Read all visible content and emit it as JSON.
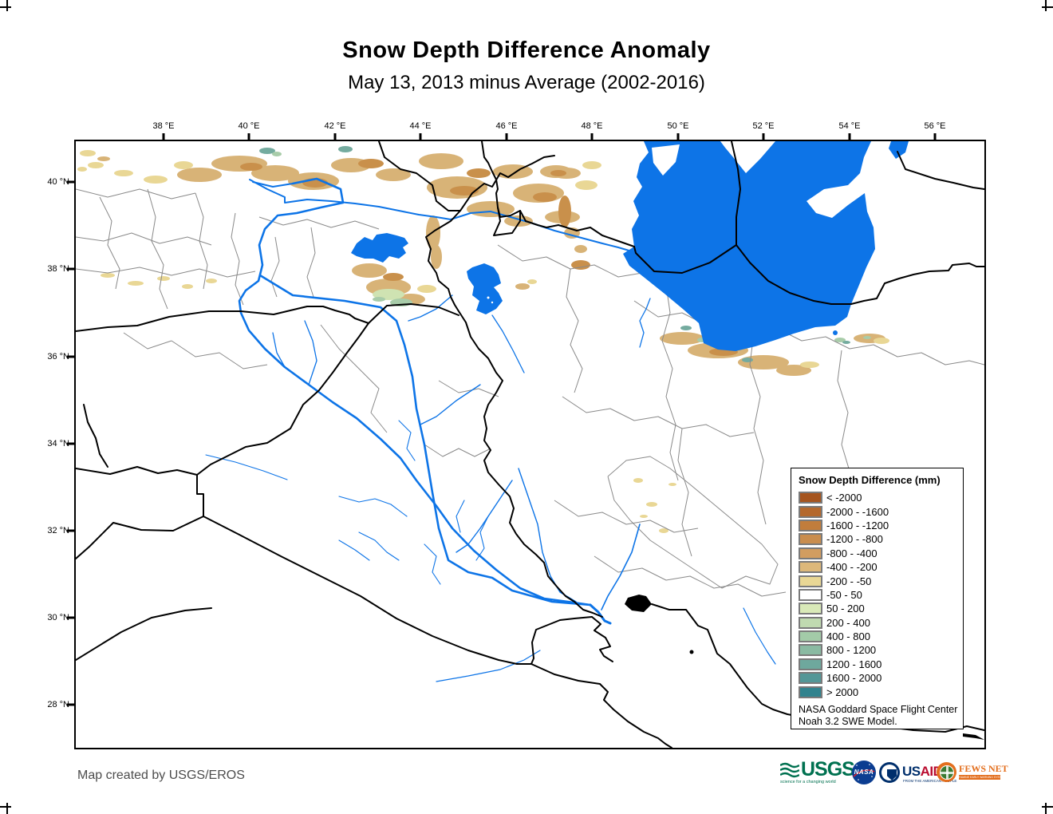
{
  "title": "Snow Depth Difference Anomaly",
  "subtitle": "May 13, 2013 minus Average (2002-2016)",
  "axes": {
    "top": [
      "38 °E",
      "40 °E",
      "42 °E",
      "44 °E",
      "46 °E",
      "48 °E",
      "50 °E",
      "52 °E",
      "54 °E",
      "56 °E"
    ],
    "left": [
      "40 °N",
      "38 °N",
      "36 °N",
      "34 °N",
      "32 °N",
      "30 °N",
      "28 °N"
    ]
  },
  "legend": {
    "title": "Snow Depth Difference (mm)",
    "items": [
      {
        "label": "< -2000",
        "color": "#a5541e"
      },
      {
        "label": "-2000 - -1600",
        "color": "#b4682c"
      },
      {
        "label": "-1600 - -1200",
        "color": "#c17d3c"
      },
      {
        "label": "-1200 - -800",
        "color": "#c98d4e"
      },
      {
        "label": "-800 - -400",
        "color": "#d29d60"
      },
      {
        "label": "-400 - -200",
        "color": "#ddb87a"
      },
      {
        "label": "-200 - -50",
        "color": "#e9d795"
      },
      {
        "label": "-50 - 50",
        "color": "#ffffff"
      },
      {
        "label": "50 - 200",
        "color": "#d9e9b8"
      },
      {
        "label": "200 - 400",
        "color": "#c0dab0"
      },
      {
        "label": "400 - 800",
        "color": "#a3cba8"
      },
      {
        "label": "800 - 1200",
        "color": "#8abaa2"
      },
      {
        "label": "1200 - 1600",
        "color": "#6ea89d"
      },
      {
        "label": "1600 - 2000",
        "color": "#539797"
      },
      {
        "label": "> 2000",
        "color": "#31838e"
      }
    ],
    "source_line1": "NASA Goddard Space Flight Center",
    "source_line2": "Noah 3.2 SWE Model."
  },
  "footer": {
    "credit": "Map created by USGS/EROS"
  },
  "logos": {
    "usgs": {
      "name": "USGS",
      "tagline": "science for a changing world"
    },
    "nasa": {
      "name": "NASA"
    },
    "usaid": {
      "us": "US",
      "aid": "AID",
      "tagline": "FROM THE AMERICAN PEOPLE"
    },
    "fewsnet": {
      "name": "FEWS NET",
      "tagline": "FAMINE EARLY WARNING SYSTEMS NETWORK"
    }
  },
  "map": {
    "colors": {
      "water": "#0d74e7",
      "country_border": "#000000",
      "admin_border": "#8a8a8a",
      "terrain_tan": "#d8b377",
      "terrain_brown": "#c9904b",
      "terrain_pale": "#e9d795",
      "terrain_green_light": "#cfe3b2",
      "terrain_green_mid": "#a8cca9",
      "terrain_green_dark": "#74ab9f"
    }
  }
}
